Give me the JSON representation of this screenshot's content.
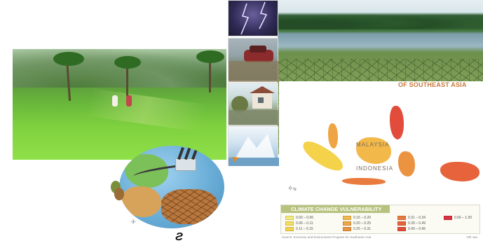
{
  "map": {
    "title": "OF SOUTHEAST ASIA",
    "countries": [
      "MALAYSIA",
      "INDONESIA"
    ],
    "compass": "N",
    "legend": {
      "title": "CLIMATE CHANGE VULNERABILITY",
      "items": [
        {
          "label": "0.00 – 0.06",
          "color": "#f3ea7a"
        },
        {
          "label": "0.06 – 0.11",
          "color": "#f5de5d"
        },
        {
          "label": "0.11 – 0.15",
          "color": "#f4d24a"
        },
        {
          "label": "0.15 – 0.20",
          "color": "#f2b94a"
        },
        {
          "label": "0.20 – 0.25",
          "color": "#efa546"
        },
        {
          "label": "0.25 – 0.31",
          "color": "#ec9342"
        },
        {
          "label": "0.31 – 0.34",
          "color": "#e97b3e"
        },
        {
          "label": "0.39 – 0.49",
          "color": "#e6633c"
        },
        {
          "label": "0.49 – 0.66",
          "color": "#e24c3b"
        },
        {
          "label": "0.66 – 1.00",
          "color": "#dc3040"
        }
      ]
    },
    "source": "Source: Economy and Environment Program for Southeast Asia",
    "page": "Oth Jan"
  },
  "logo_text": "Ƨ"
}
